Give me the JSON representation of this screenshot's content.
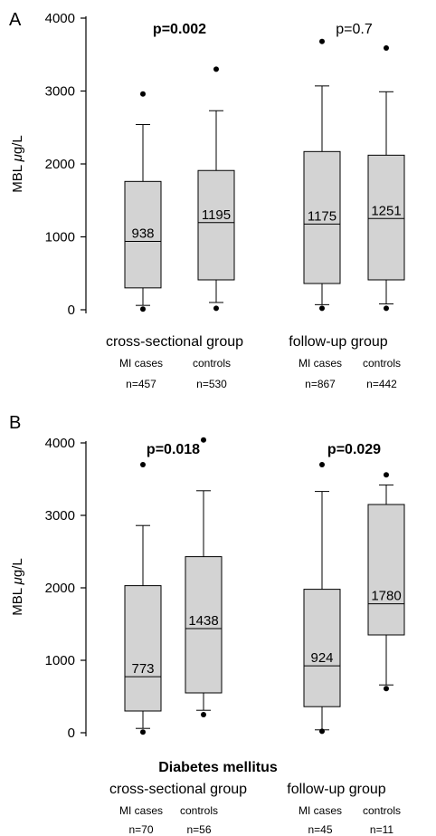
{
  "chart_data": [
    {
      "type": "box",
      "panel_label": "A",
      "title": "",
      "ylabel": "MBL μg/L",
      "ylabel_prefix": "MBL ",
      "ylabel_unit": "μg/L",
      "ylim": [
        0,
        4000
      ],
      "yticks": [
        0,
        1000,
        2000,
        3000,
        4000
      ],
      "grid": false,
      "groups": [
        {
          "name": "cross-sectional group",
          "p_value": "p=0.002",
          "p_bold": true,
          "boxes": [
            {
              "category": "MI cases",
              "n": "n=457",
              "median_label": "938",
              "median": 938,
              "q1": 300,
              "q3": 1760,
              "whisker_low": 60,
              "whisker_high": 2540,
              "outliers": [
                10,
                2960
              ]
            },
            {
              "category": "controls",
              "n": "n=530",
              "median_label": "1195",
              "median": 1195,
              "q1": 410,
              "q3": 1910,
              "whisker_low": 100,
              "whisker_high": 2730,
              "outliers": [
                20,
                3300
              ]
            }
          ]
        },
        {
          "name": "follow-up group",
          "p_value": "p=0.7",
          "p_bold": false,
          "boxes": [
            {
              "category": "MI cases",
              "n": "n=867",
              "median_label": "1175",
              "median": 1175,
              "q1": 360,
              "q3": 2170,
              "whisker_low": 70,
              "whisker_high": 3070,
              "outliers": [
                20,
                3680
              ]
            },
            {
              "category": "controls",
              "n": "n=442",
              "median_label": "1251",
              "median": 1251,
              "q1": 410,
              "q3": 2120,
              "whisker_low": 80,
              "whisker_high": 2990,
              "outliers": [
                20,
                3590
              ]
            }
          ]
        }
      ]
    },
    {
      "type": "box",
      "panel_label": "B",
      "title": "Diabetes mellitus",
      "ylabel": "MBL μg/L",
      "ylabel_prefix": "MBL ",
      "ylabel_unit": "μg/L",
      "ylim": [
        0,
        4000
      ],
      "yticks": [
        0,
        1000,
        2000,
        3000,
        4000
      ],
      "grid": false,
      "groups": [
        {
          "name": "cross-sectional group",
          "p_value": "p=0.018",
          "p_bold": true,
          "boxes": [
            {
              "category": "MI cases",
              "n": "n=70",
              "median_label": "773",
              "median": 773,
              "q1": 300,
              "q3": 2030,
              "whisker_low": 60,
              "whisker_high": 2860,
              "outliers": [
                10,
                3700
              ]
            },
            {
              "category": "controls",
              "n": "n=56",
              "median_label": "1438",
              "median": 1438,
              "q1": 550,
              "q3": 2430,
              "whisker_low": 310,
              "whisker_high": 3340,
              "outliers": [
                250,
                4040
              ]
            }
          ]
        },
        {
          "name": "follow-up group",
          "p_value": "p=0.029",
          "p_bold": true,
          "boxes": [
            {
              "category": "MI cases",
              "n": "n=45",
              "median_label": "924",
              "median": 924,
              "q1": 360,
              "q3": 1980,
              "whisker_low": 40,
              "whisker_high": 3330,
              "outliers": [
                20,
                3700
              ]
            },
            {
              "category": "controls",
              "n": "n=11",
              "median_label": "1780",
              "median": 1780,
              "q1": 1350,
              "q3": 3150,
              "whisker_low": 660,
              "whisker_high": 3420,
              "outliers": [
                610,
                3560
              ]
            }
          ]
        }
      ]
    }
  ]
}
